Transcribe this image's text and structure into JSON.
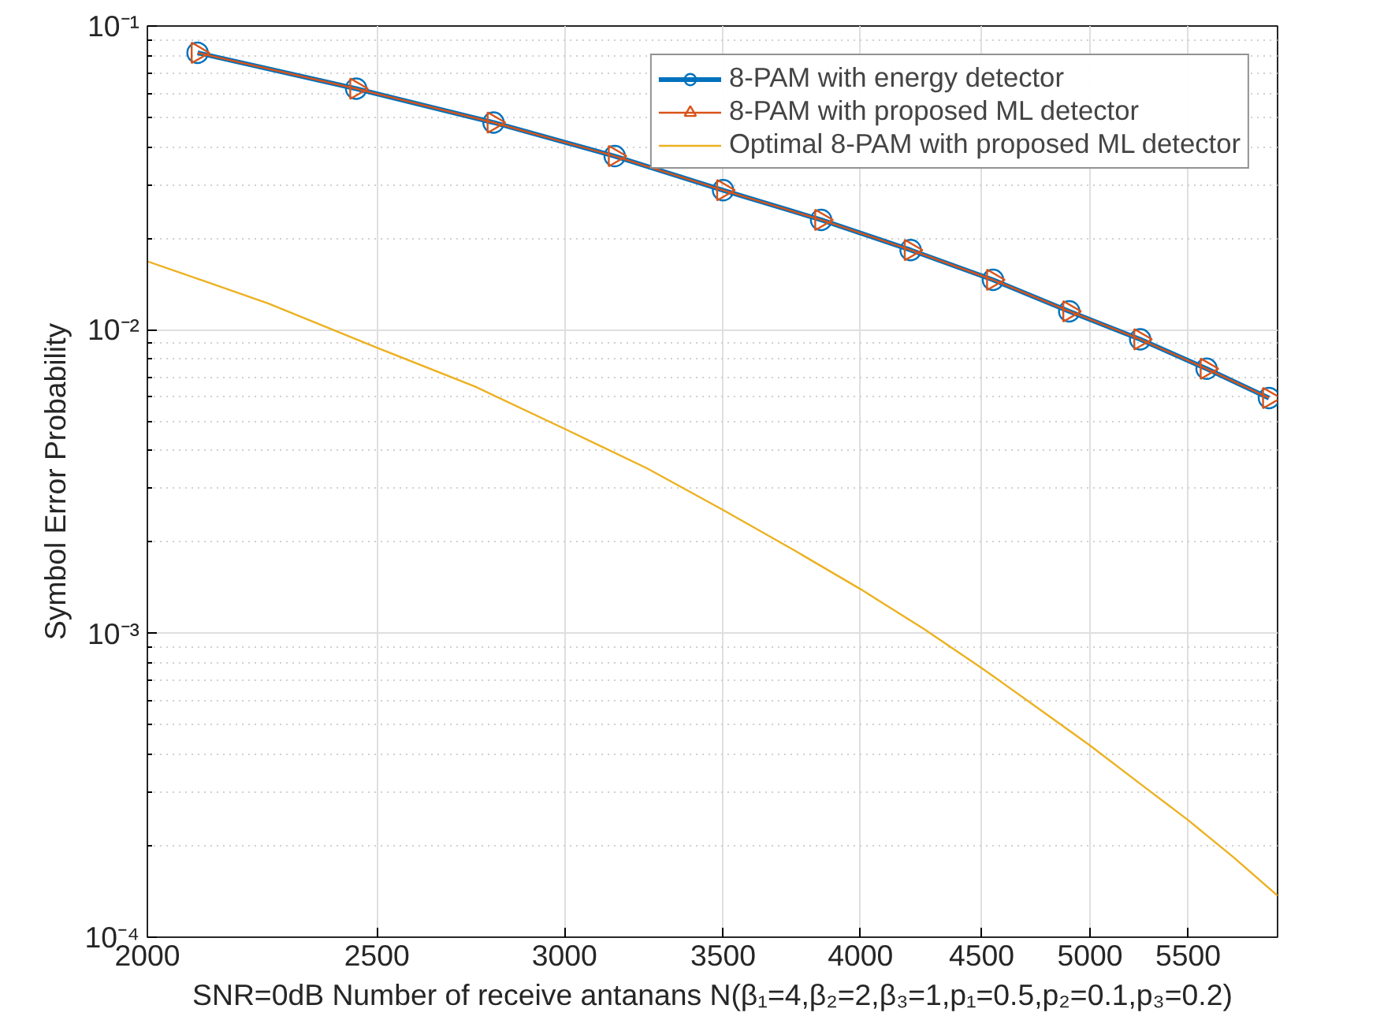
{
  "chart_data": {
    "type": "line",
    "xlabel": "SNR=0dB Number of receive antanans N(β₁=4,β₂=2,β₃=1,p₁=0.5,p₂=0.1,p₃=0.2)",
    "ylabel": "Symbol Error Probability",
    "log": "xy",
    "grid": true,
    "legend": "top right",
    "xlim": [
      2000,
      6000
    ],
    "xticks": [
      2000,
      2500,
      3000,
      3500,
      4000,
      4500,
      5000,
      5500
    ],
    "ylim": [
      0.0001,
      0.1
    ],
    "yticks": [
      {
        "value": 0.0001,
        "label": "10⁻⁴"
      },
      {
        "value": 0.001,
        "label": "10⁻³"
      },
      {
        "value": 0.01,
        "label": "10⁻²"
      },
      {
        "value": 0.1,
        "label": "10⁻¹"
      }
    ],
    "series": [
      {
        "name": "8-PAM with energy detector",
        "color": "#0072bd",
        "marker": "circle",
        "x": [
          2100,
          2450,
          2800,
          3150,
          3500,
          3850,
          4200,
          4550,
          4900,
          5250,
          5600,
          5950
        ],
        "values": [
          0.0816,
          0.0622,
          0.0481,
          0.0373,
          0.0288,
          0.023,
          0.0183,
          0.0146,
          0.0115,
          0.0093,
          0.00744,
          0.00596
        ]
      },
      {
        "name": "8-PAM with proposed ML detector",
        "color": "#d95319",
        "marker": "triangle",
        "x": [
          2100,
          2450,
          2800,
          3150,
          3500,
          3850,
          4200,
          4550,
          4900,
          5250,
          5600,
          5950
        ],
        "values": [
          0.0816,
          0.0622,
          0.0481,
          0.0373,
          0.0288,
          0.023,
          0.0183,
          0.0146,
          0.0115,
          0.0093,
          0.00744,
          0.00596
        ]
      },
      {
        "name": "Optimal 8-PAM with proposed ML detector",
        "color": "#edb120",
        "marker": "none",
        "x": [
          2000,
          2250,
          2500,
          2750,
          3000,
          3250,
          3500,
          3750,
          4000,
          4250,
          4500,
          4750,
          5000,
          5250,
          5500,
          5750,
          6000
        ],
        "values": [
          0.0168,
          0.0122,
          0.00873,
          0.0065,
          0.00472,
          0.0035,
          0.00255,
          0.00188,
          0.0014,
          0.00104,
          0.00077,
          0.00057,
          0.000428,
          0.00032,
          0.000243,
          0.000183,
          0.000137
        ]
      }
    ]
  }
}
